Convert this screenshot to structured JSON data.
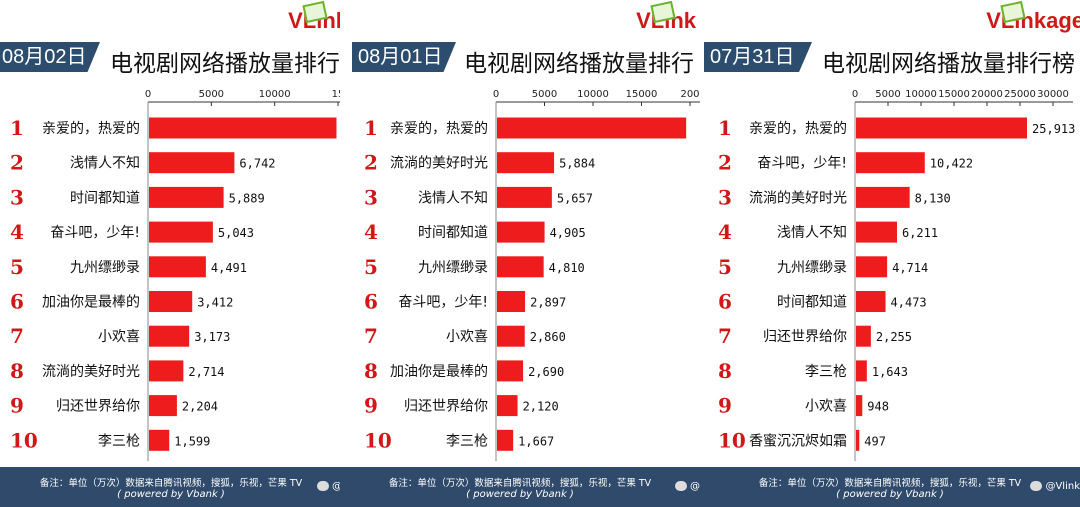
{
  "panels": [
    {
      "logo": "VLink",
      "date": "08月02日",
      "title": "电视剧网络播放量排行",
      "watermark": "@"
    },
    {
      "logo": "VLink",
      "date": "08月01日",
      "title": "电视剧网络播放量排行",
      "watermark": "@"
    },
    {
      "logo": "VLinkage",
      "date": "07月31日",
      "title": "电视剧网络播放量排行榜",
      "watermark": "@Vlink"
    }
  ],
  "footer": {
    "note": "备注：单位（万次）数据来自腾讯视频，搜狐，乐视，芒果 TV",
    "powered": "( powered by Vbank )"
  },
  "colors": {
    "bar": "#ee1c1c",
    "rank": "#d01818",
    "header": "#2d4d6e",
    "footer": "#2f4a6a",
    "logo": "#d01818"
  },
  "chart_data": [
    {
      "type": "bar",
      "orientation": "horizontal",
      "title": "电视剧网络播放量排行",
      "date": "08月02日",
      "ticks": [
        "0",
        "5000",
        "10000",
        "15"
      ],
      "xlim": [
        0,
        15000
      ],
      "ranks": [
        "1",
        "2",
        "3",
        "4",
        "5",
        "6",
        "7",
        "8",
        "9",
        "10"
      ],
      "categories": [
        "亲爱的，热爱的",
        "浅情人不知",
        "时间都知道",
        "奋斗吧，少年!",
        "九州缥缈录",
        "加油你是最棒的",
        "小欢喜",
        "流淌的美好时光",
        "归还世界给你",
        "李三枪"
      ],
      "values": [
        14800,
        6742,
        5889,
        5043,
        4491,
        3412,
        3173,
        2714,
        2204,
        1599
      ],
      "labels": [
        "",
        "6,742",
        "5,889",
        "5,043",
        "4,491",
        "3,412",
        "3,173",
        "2,714",
        "2,204",
        "1,599"
      ]
    },
    {
      "type": "bar",
      "orientation": "horizontal",
      "title": "电视剧网络播放量排行",
      "date": "08月01日",
      "ticks": [
        "0",
        "5000",
        "10000",
        "15000",
        "200"
      ],
      "xlim": [
        0,
        20000
      ],
      "ranks": [
        "1",
        "2",
        "3",
        "4",
        "5",
        "6",
        "7",
        "8",
        "9",
        "10"
      ],
      "categories": [
        "亲爱的，热爱的",
        "流淌的美好时光",
        "浅情人不知",
        "时间都知道",
        "九州缥缈录",
        "奋斗吧，少年!",
        "小欢喜",
        "加油你是最棒的",
        "归还世界给你",
        "李三枪"
      ],
      "values": [
        19500,
        5884,
        5657,
        4905,
        4810,
        2897,
        2860,
        2690,
        2120,
        1667
      ],
      "labels": [
        "",
        "5,884",
        "5,657",
        "4,905",
        "4,810",
        "2,897",
        "2,860",
        "2,690",
        "2,120",
        "1,667"
      ]
    },
    {
      "type": "bar",
      "orientation": "horizontal",
      "title": "电视剧网络播放量排行榜",
      "date": "07月31日",
      "ticks": [
        "0",
        "5000",
        "10000",
        "15000",
        "20000",
        "25000",
        "30000"
      ],
      "xlim": [
        0,
        30000
      ],
      "ranks": [
        "1",
        "2",
        "3",
        "4",
        "5",
        "6",
        "7",
        "8",
        "9",
        "10"
      ],
      "categories": [
        "亲爱的，热爱的",
        "奋斗吧，少年!",
        "流淌的美好时光",
        "浅情人不知",
        "九州缥缈录",
        "时间都知道",
        "归还世界给你",
        "李三枪",
        "小欢喜",
        "香蜜沉沉烬如霜"
      ],
      "values": [
        25913,
        10422,
        8130,
        6211,
        4714,
        4473,
        2255,
        1643,
        948,
        497
      ],
      "labels": [
        "25,913",
        "10,422",
        "8,130",
        "6,211",
        "4,714",
        "4,473",
        "2,255",
        "1,643",
        "948",
        "497"
      ]
    }
  ]
}
